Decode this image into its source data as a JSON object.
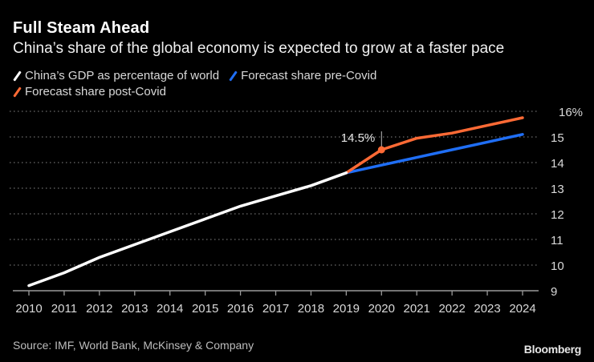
{
  "header": {
    "title": "Full Steam Ahead",
    "subtitle": "China’s share of the global economy is expected to grow at a faster pace"
  },
  "legend": [
    {
      "label": "China’s GDP as percentage of world",
      "color": "#ffffff"
    },
    {
      "label": "Forecast share pre-Covid",
      "color": "#1f6ef5"
    },
    {
      "label": "Forecast share post-Covid",
      "color": "#ff6a35"
    }
  ],
  "footer": {
    "source": "Source: IMF, World Bank, McKinsey & Company",
    "brand": "Bloomberg"
  },
  "chart_data": {
    "type": "line",
    "title": "Full Steam Ahead",
    "subtitle": "China’s share of the global economy is expected to grow at a faster pace",
    "xlabel": "",
    "ylabel": "",
    "x": [
      2010,
      2011,
      2012,
      2013,
      2014,
      2015,
      2016,
      2017,
      2018,
      2019,
      2020,
      2021,
      2022,
      2023,
      2024
    ],
    "x_tick_labels": [
      "2010",
      "2011",
      "2012",
      "2013",
      "2014",
      "2015",
      "2016",
      "2017",
      "2018",
      "2019",
      "2020",
      "2021",
      "2022",
      "2023",
      "2024"
    ],
    "ylim": [
      9,
      16
    ],
    "y_ticks": [
      9,
      10,
      11,
      12,
      13,
      14,
      15,
      16
    ],
    "y_tick_labels": [
      "9",
      "10",
      "11",
      "12",
      "13",
      "14",
      "15",
      "16%"
    ],
    "y_axis_side": "right",
    "grid": true,
    "legend_position": "top-left",
    "series": [
      {
        "name": "China’s GDP as percentage of world",
        "color": "#ffffff",
        "x": [
          2010,
          2011,
          2012,
          2013,
          2014,
          2015,
          2016,
          2017,
          2018,
          2019
        ],
        "values": [
          9.2,
          9.7,
          10.3,
          10.8,
          11.3,
          11.8,
          12.3,
          12.7,
          13.1,
          13.6
        ]
      },
      {
        "name": "Forecast share pre-Covid",
        "color": "#1f6ef5",
        "x": [
          2019,
          2020,
          2021,
          2022,
          2023,
          2024
        ],
        "values": [
          13.6,
          13.9,
          14.2,
          14.5,
          14.8,
          15.1
        ]
      },
      {
        "name": "Forecast share post-Covid",
        "color": "#ff6a35",
        "x": [
          2019,
          2020,
          2021,
          2022,
          2023,
          2024
        ],
        "values": [
          13.6,
          14.5,
          14.95,
          15.15,
          15.45,
          15.75
        ]
      }
    ],
    "annotations": [
      {
        "text": "14.5%",
        "series": "Forecast share post-Covid",
        "x": 2020,
        "y": 14.5
      }
    ]
  }
}
